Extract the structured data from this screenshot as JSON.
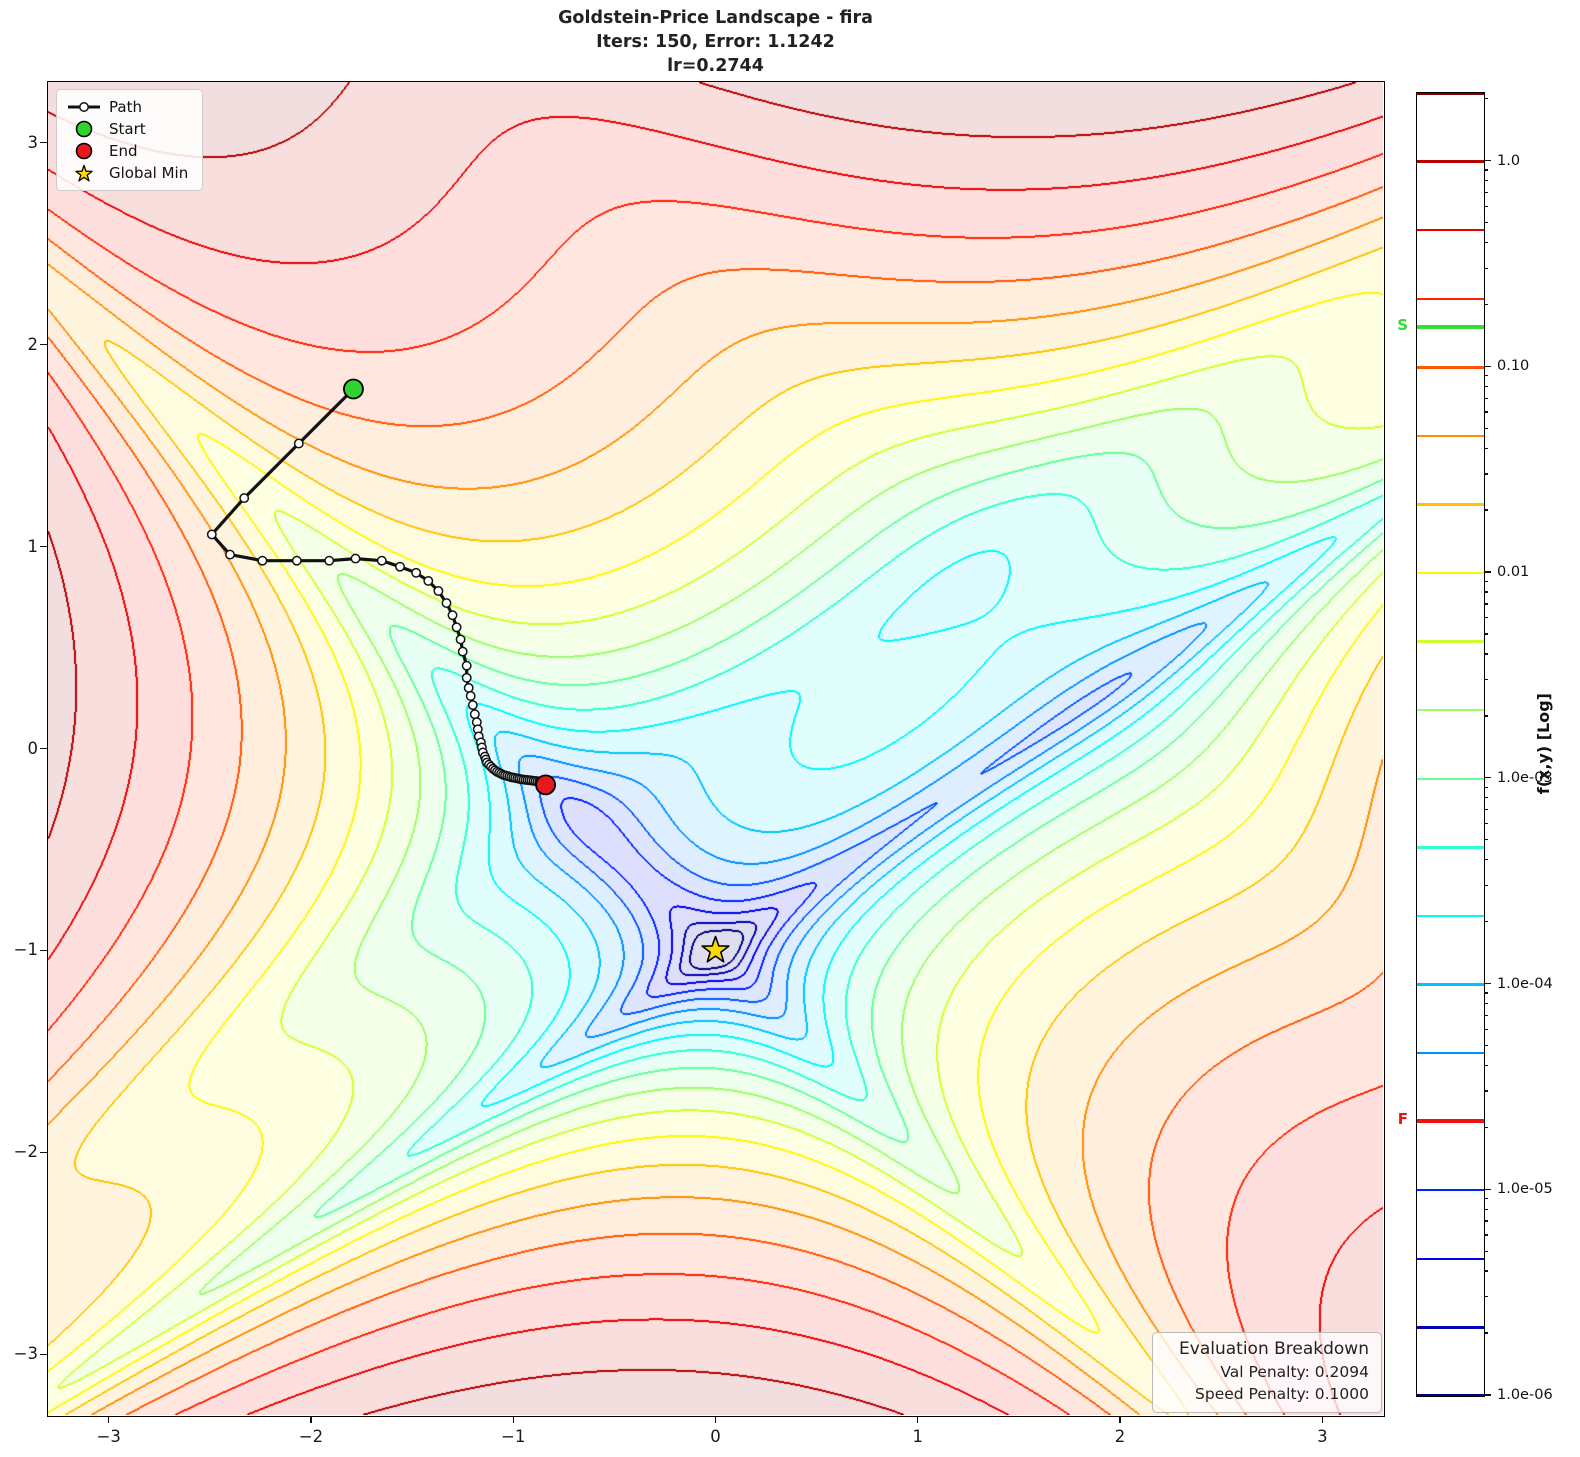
{
  "title": {
    "line1": "Goldstein-Price Landscape - fira",
    "line2": "Iters: 150, Error: 1.1242",
    "line3": "lr=0.2744"
  },
  "legend": {
    "path_label": "Path",
    "start_label": "Start",
    "end_label": "End",
    "global_min_label": "Global Min"
  },
  "eval_box": {
    "title": "Evaluation Breakdown",
    "val_line": "Val Penalty: 0.2094",
    "speed_line": "Speed Penalty: 0.1000"
  },
  "colors": {
    "start_marker": "#2ed32e",
    "end_marker": "#e8191c",
    "global_min_star": "#ffd700",
    "path_line": "#111111",
    "s_line": "#33dd33",
    "f_line": "#ee1111"
  },
  "colorbar": {
    "label": "f(x,y) [Log]",
    "s_label": "S",
    "f_label": "F",
    "s_value": 0.157,
    "f_value": 2.17e-05,
    "ticks": [
      {
        "v": 1.0,
        "label": "1.0"
      },
      {
        "v": 0.1,
        "label": "0.10"
      },
      {
        "v": 0.01,
        "label": "0.01"
      },
      {
        "v": 0.001,
        "label": "1.0e-03"
      },
      {
        "v": 0.0001,
        "label": "1.0e-04"
      },
      {
        "v": 1e-05,
        "label": "1.0e-05"
      },
      {
        "v": 1e-06,
        "label": "1.0e-06"
      }
    ]
  },
  "axes": {
    "x_ticks": [
      {
        "v": -3,
        "label": "−3"
      },
      {
        "v": -2,
        "label": "−2"
      },
      {
        "v": -1,
        "label": "−1"
      },
      {
        "v": 0,
        "label": "0"
      },
      {
        "v": 1,
        "label": "1"
      },
      {
        "v": 2,
        "label": "2"
      },
      {
        "v": 3,
        "label": "3"
      }
    ],
    "y_ticks": [
      {
        "v": 3,
        "label": "3"
      },
      {
        "v": 2,
        "label": "2"
      },
      {
        "v": 1,
        "label": "1"
      },
      {
        "v": 0,
        "label": "0"
      },
      {
        "v": -1,
        "label": "−1"
      },
      {
        "v": -2,
        "label": "−2"
      },
      {
        "v": -3,
        "label": "−3"
      }
    ]
  },
  "chart_data": {
    "type": "contour",
    "title": "Goldstein-Price Landscape - fira",
    "subtitle": "Iters: 150, Error: 1.1242",
    "lr_text": "lr=0.2744",
    "function": "goldstein_price",
    "xlim": [
      -3.3,
      3.3
    ],
    "ylim": [
      -3.3,
      3.3
    ],
    "value_scale": 4400000,
    "log_vmin": -6,
    "log_vmax": 0.33333,
    "levels_per_decade": 3,
    "colormap": "jet",
    "fill_alpha": 0.13,
    "grid": false,
    "legend_position": "upper-left",
    "global_min": [
      0,
      -1
    ],
    "start": [
      -1.79,
      1.78
    ],
    "end": [
      -0.84,
      -0.18
    ],
    "path": [
      [
        -1.79,
        1.78
      ],
      [
        -2.06,
        1.51
      ],
      [
        -2.33,
        1.24
      ],
      [
        -2.49,
        1.06
      ],
      [
        -2.4,
        0.96
      ],
      [
        -2.24,
        0.93
      ],
      [
        -2.07,
        0.93
      ],
      [
        -1.91,
        0.93
      ],
      [
        -1.78,
        0.94
      ],
      [
        -1.65,
        0.93
      ],
      [
        -1.56,
        0.9
      ],
      [
        -1.48,
        0.87
      ],
      [
        -1.42,
        0.83
      ],
      [
        -1.37,
        0.78
      ],
      [
        -1.33,
        0.72
      ],
      [
        -1.3,
        0.66
      ],
      [
        -1.28,
        0.6
      ],
      [
        -1.26,
        0.54
      ],
      [
        -1.25,
        0.48
      ],
      [
        -1.23,
        0.41
      ],
      [
        -1.23,
        0.35
      ],
      [
        -1.22,
        0.3
      ],
      [
        -1.21,
        0.26
      ],
      [
        -1.2,
        0.215
      ],
      [
        -1.19,
        0.17
      ],
      [
        -1.18,
        0.13
      ],
      [
        -1.175,
        0.095
      ],
      [
        -1.17,
        0.06
      ],
      [
        -1.16,
        0.03
      ],
      [
        -1.155,
        0.005
      ],
      [
        -1.15,
        -0.02
      ],
      [
        -1.14,
        -0.04
      ],
      [
        -1.135,
        -0.055
      ],
      [
        -1.13,
        -0.07
      ],
      [
        -1.12,
        -0.08
      ],
      [
        -1.11,
        -0.09
      ],
      [
        -1.1,
        -0.1
      ],
      [
        -1.09,
        -0.108
      ],
      [
        -1.08,
        -0.115
      ],
      [
        -1.07,
        -0.12
      ],
      [
        -1.06,
        -0.125
      ],
      [
        -1.05,
        -0.13
      ],
      [
        -1.04,
        -0.133
      ],
      [
        -1.03,
        -0.136
      ],
      [
        -1.02,
        -0.139
      ],
      [
        -1.01,
        -0.142
      ],
      [
        -1.0,
        -0.144
      ],
      [
        -0.99,
        -0.146
      ],
      [
        -0.98,
        -0.148
      ],
      [
        -0.97,
        -0.15
      ],
      [
        -0.96,
        -0.152
      ],
      [
        -0.95,
        -0.154
      ],
      [
        -0.94,
        -0.155
      ],
      [
        -0.93,
        -0.156
      ],
      [
        -0.92,
        -0.157
      ],
      [
        -0.91,
        -0.158
      ],
      [
        -0.9,
        -0.16
      ],
      [
        -0.89,
        -0.161
      ],
      [
        -0.88,
        -0.162
      ],
      [
        -0.87,
        -0.163
      ],
      [
        -0.86,
        -0.165
      ],
      [
        -0.85,
        -0.17
      ],
      [
        -0.84,
        -0.18
      ]
    ]
  }
}
